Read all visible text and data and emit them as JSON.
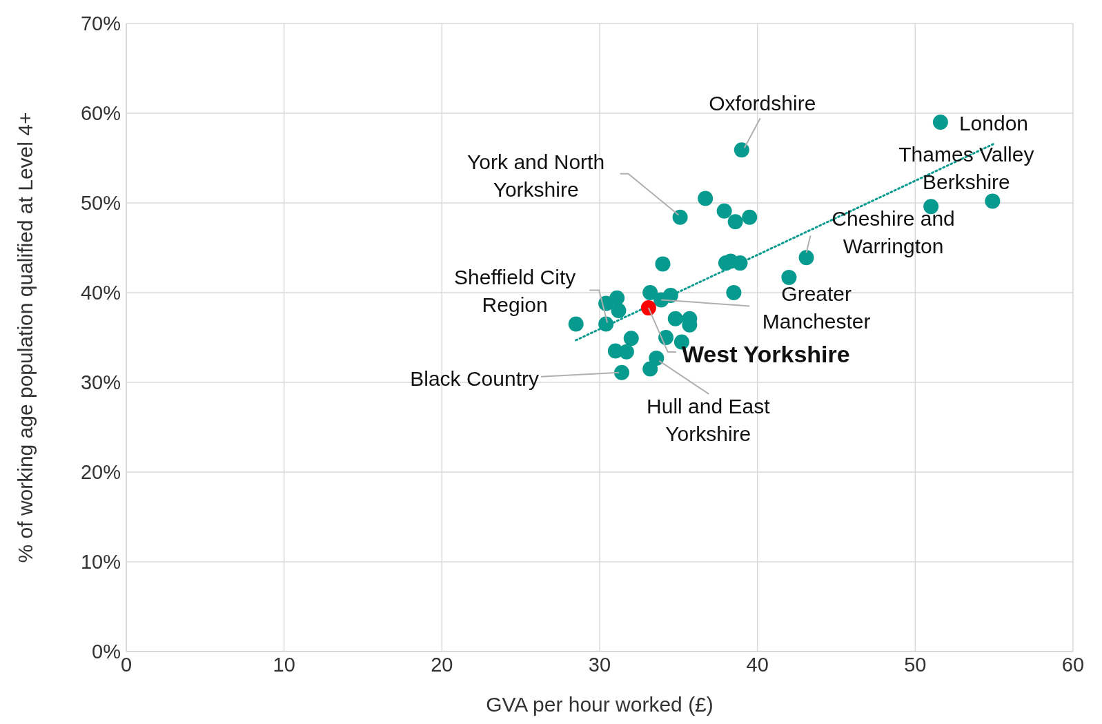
{
  "chart_data": {
    "type": "scatter",
    "xlabel": "GVA per hour worked (£)",
    "ylabel": "% of working age population qualified at Level 4+",
    "xlim": [
      0,
      60
    ],
    "xticks": [
      0,
      10,
      20,
      30,
      40,
      50,
      60
    ],
    "ylim": [
      0,
      70
    ],
    "yticks": [
      {
        "value": 0,
        "label": "0%"
      },
      {
        "value": 10,
        "label": "10%"
      },
      {
        "value": 20,
        "label": "20%"
      },
      {
        "value": 30,
        "label": "30%"
      },
      {
        "value": 40,
        "label": "40%"
      },
      {
        "value": 50,
        "label": "50%"
      },
      {
        "value": 60,
        "label": "60%"
      },
      {
        "value": 70,
        "label": "70%"
      }
    ],
    "grid": true,
    "marker": "circle",
    "series": [
      {
        "color": "#079a8e",
        "x": [
          51.6,
          54.9,
          51.0,
          39.0,
          43.1,
          42.0,
          36.7,
          35.1,
          37.9,
          38.6,
          39.5,
          34.0,
          38.0,
          38.3,
          38.9,
          38.5,
          33.2,
          34.5,
          33.9,
          30.4,
          31.1,
          31.2,
          28.5,
          30.4,
          34.8,
          35.7,
          35.7,
          34.2,
          35.2,
          32.0,
          31.0,
          31.7,
          31.4,
          33.6,
          33.2
        ],
        "values": [
          59.0,
          50.2,
          49.6,
          55.9,
          43.9,
          41.7,
          50.5,
          48.4,
          49.1,
          47.9,
          48.4,
          43.2,
          43.3,
          43.5,
          43.3,
          40.0,
          40.0,
          39.7,
          39.2,
          38.8,
          39.4,
          38.0,
          36.5,
          36.5,
          37.1,
          37.1,
          36.4,
          35.0,
          34.5,
          34.9,
          33.5,
          33.4,
          31.1,
          32.7,
          31.5
        ]
      },
      {
        "color": "#ff0000",
        "x": [
          33.1
        ],
        "values": [
          38.3
        ]
      },
      {
        "type": "line",
        "color": "#079a8e",
        "line_style": "dotted",
        "marker": "none",
        "x": [
          28.5,
          55.0
        ],
        "values": [
          34.7,
          56.6
        ]
      }
    ],
    "annotations": [
      {
        "text": "Oxfordshire",
        "x": 39.0,
        "y": 55.9
      },
      {
        "text": "London",
        "x": 51.6,
        "y": 59.0
      },
      {
        "text": "Thames Valley Berkshire",
        "x": 54.9,
        "y": 50.2
      },
      {
        "text": "Cheshire and Warrington",
        "x": 43.1,
        "y": 43.9
      },
      {
        "text": "Greater Manchester",
        "x": 33.9,
        "y": 39.2
      },
      {
        "text": "West Yorkshire",
        "x": 33.1,
        "y": 38.3
      },
      {
        "text": "Sheffield City Region",
        "x": 30.4,
        "y": 36.5
      },
      {
        "text": "York and North Yorkshire",
        "x": 35.1,
        "y": 48.4
      },
      {
        "text": "Black Country",
        "x": 31.4,
        "y": 31.1
      },
      {
        "text": "Hull and East Yorkshire",
        "x": 33.6,
        "y": 32.7
      }
    ]
  }
}
